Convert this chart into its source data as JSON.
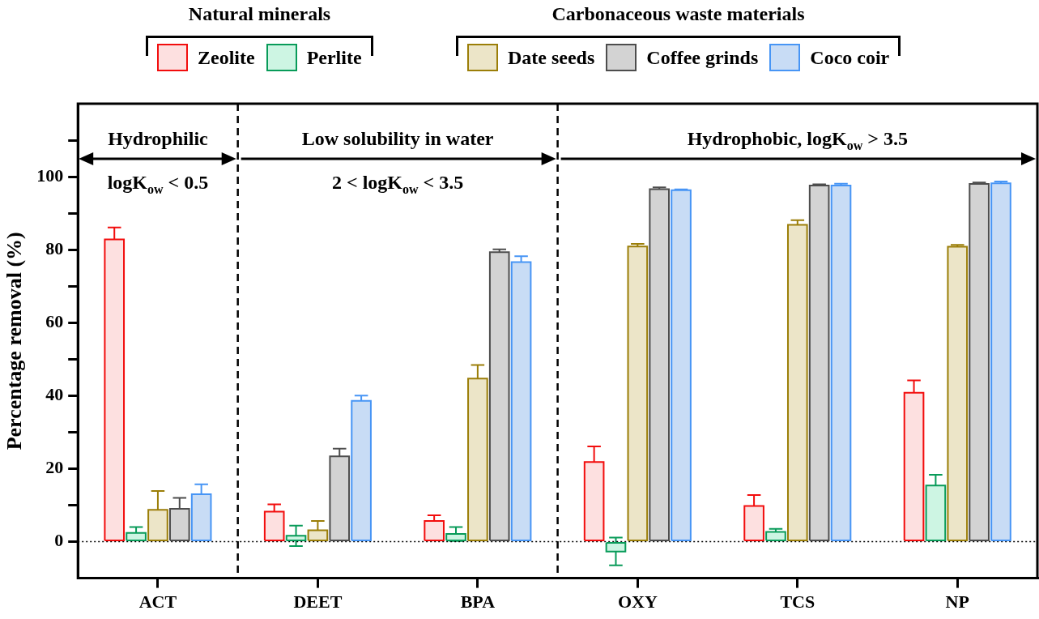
{
  "chart_data": {
    "type": "bar",
    "ylabel": "Percentage removal (%)",
    "categories": [
      "ACT",
      "DEET",
      "BPA",
      "OXY",
      "TCS",
      "NP"
    ],
    "series": [
      {
        "name": "Zeolite",
        "color": "#fde0e0",
        "values": [
          82.8,
          8.2,
          5.7,
          21.8,
          9.8,
          40.8
        ],
        "errors": [
          3.3,
          2.0,
          1.5,
          4.3,
          3.0,
          3.4
        ]
      },
      {
        "name": "Perlite",
        "color": "#cdf5e3",
        "values": [
          2.4,
          1.6,
          2.1,
          -2.7,
          2.7,
          15.4
        ],
        "errors": [
          1.6,
          2.8,
          1.9,
          3.8,
          0.8,
          2.9
        ]
      },
      {
        "name": "Date seeds",
        "color": "#ece5c8",
        "values": [
          8.7,
          3.1,
          44.7,
          80.9,
          86.8,
          80.8
        ],
        "errors": [
          5.2,
          2.6,
          3.7,
          0.7,
          1.3,
          0.5
        ]
      },
      {
        "name": "Coffee grinds",
        "color": "#d3d3d3",
        "values": [
          9.0,
          23.4,
          79.3,
          96.6,
          97.6,
          98.0
        ],
        "errors": [
          3.0,
          2.1,
          0.8,
          0.5,
          0.3,
          0.4
        ]
      },
      {
        "name": "Coco coir",
        "color": "#c8dcf5",
        "values": [
          13.0,
          38.6,
          76.6,
          96.3,
          97.6,
          98.2
        ],
        "errors": [
          2.7,
          1.4,
          1.6,
          0.2,
          0.5,
          0.5
        ]
      }
    ],
    "ylim": [
      -10,
      120
    ],
    "yticks": [
      0,
      {
        "value": 10,
        "label": null
      },
      20,
      {
        "value": 30,
        "label": null
      },
      40,
      {
        "value": 50,
        "label": null
      },
      60,
      {
        "value": 70,
        "label": null
      },
      80,
      {
        "value": 90,
        "label": null
      },
      100,
      {
        "value": 110,
        "label": null
      }
    ],
    "grid": false,
    "legend": "top",
    "annotations": [
      "Natural minerals",
      "Carbonaceous waste materials",
      "Hydrophilic",
      "logK$_{ow}$ < 0.5",
      "Low solubility in water",
      "2 < logK$_{ow}$ < 3.5",
      "Hydrophobic, logK$_{ow}$ > 3.5"
    ],
    "ref_lines": [
      {
        "axis": "y",
        "value": 0,
        "line_style": "dotted",
        "color": "#000000"
      }
    ]
  }
}
